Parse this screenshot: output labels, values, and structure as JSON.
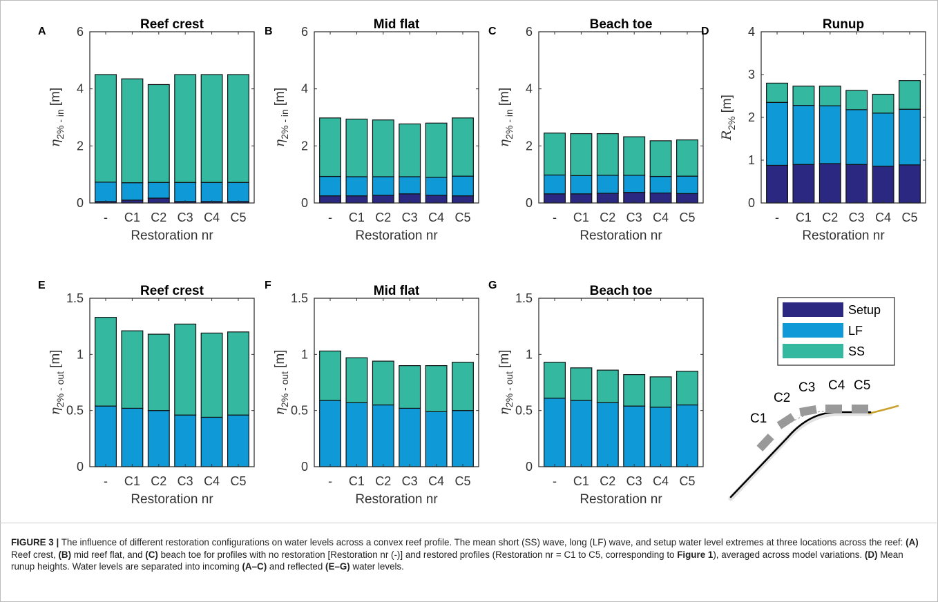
{
  "colors": {
    "setup": "#2b2882",
    "lf": "#0f9ad7",
    "ss": "#34b8a0",
    "reef_profile": "#000000",
    "beach": "#c8a02a",
    "restoration_block": "#999999"
  },
  "legend": [
    "Setup",
    "LF",
    "SS"
  ],
  "schematic": {
    "labels": [
      "C1",
      "C2",
      "C3",
      "C4",
      "C5"
    ]
  },
  "chart_data": [
    {
      "panel": "A",
      "title": "Reef crest",
      "type": "bar",
      "stacked": true,
      "categories": [
        "-",
        "C1",
        "C2",
        "C3",
        "C4",
        "C5"
      ],
      "xlabel": "Restoration nr",
      "ylabel_symbol": "η",
      "ylabel_sub": "2% - in",
      "ylabel_unit": "[m]",
      "ylim": [
        0,
        6
      ],
      "yticks": [
        "0",
        "2",
        "4",
        "6"
      ],
      "series": [
        {
          "name": "Setup",
          "values": [
            0.05,
            0.1,
            0.17,
            0.05,
            0.05,
            0.05
          ]
        },
        {
          "name": "LF",
          "values": [
            0.68,
            0.61,
            0.55,
            0.67,
            0.67,
            0.67
          ]
        },
        {
          "name": "SS",
          "values": [
            3.77,
            3.64,
            3.43,
            3.78,
            3.78,
            3.78
          ]
        }
      ]
    },
    {
      "panel": "B",
      "title": "Mid flat",
      "type": "bar",
      "stacked": true,
      "categories": [
        "-",
        "C1",
        "C2",
        "C3",
        "C4",
        "C5"
      ],
      "xlabel": "Restoration nr",
      "ylabel_symbol": "η",
      "ylabel_sub": "2% - in",
      "ylabel_unit": "[m]",
      "ylim": [
        0,
        6
      ],
      "yticks": [
        "0",
        "2",
        "4",
        "6"
      ],
      "series": [
        {
          "name": "Setup",
          "values": [
            0.25,
            0.25,
            0.27,
            0.32,
            0.27,
            0.25
          ]
        },
        {
          "name": "LF",
          "values": [
            0.68,
            0.67,
            0.65,
            0.6,
            0.63,
            0.69
          ]
        },
        {
          "name": "SS",
          "values": [
            2.05,
            2.02,
            1.99,
            1.85,
            1.9,
            2.04
          ]
        }
      ]
    },
    {
      "panel": "C",
      "title": "Beach toe",
      "type": "bar",
      "stacked": true,
      "categories": [
        "-",
        "C1",
        "C2",
        "C3",
        "C4",
        "C5"
      ],
      "xlabel": "Restoration nr",
      "ylabel_symbol": "η",
      "ylabel_sub": "2% - in",
      "ylabel_unit": "[m]",
      "ylim": [
        0,
        6
      ],
      "yticks": [
        "0",
        "2",
        "4",
        "6"
      ],
      "series": [
        {
          "name": "Setup",
          "values": [
            0.32,
            0.32,
            0.34,
            0.37,
            0.35,
            0.33
          ]
        },
        {
          "name": "LF",
          "values": [
            0.66,
            0.64,
            0.63,
            0.6,
            0.58,
            0.61
          ]
        },
        {
          "name": "SS",
          "values": [
            1.47,
            1.47,
            1.46,
            1.35,
            1.25,
            1.27
          ]
        }
      ]
    },
    {
      "panel": "D",
      "title": "Runup",
      "type": "bar",
      "stacked": true,
      "categories": [
        "-",
        "C1",
        "C2",
        "C3",
        "C4",
        "C5"
      ],
      "xlabel": "Restoration nr",
      "ylabel_symbol": "R",
      "ylabel_sub": "2%",
      "ylabel_unit": "[m]",
      "ylim": [
        0,
        4
      ],
      "yticks": [
        "0",
        "1",
        "2",
        "3",
        "4"
      ],
      "series": [
        {
          "name": "Setup",
          "values": [
            0.88,
            0.9,
            0.92,
            0.9,
            0.86,
            0.89
          ]
        },
        {
          "name": "LF",
          "values": [
            1.47,
            1.38,
            1.35,
            1.28,
            1.24,
            1.3
          ]
        },
        {
          "name": "SS",
          "values": [
            0.45,
            0.45,
            0.46,
            0.45,
            0.44,
            0.67
          ]
        }
      ]
    },
    {
      "panel": "E",
      "title": "Reef crest",
      "type": "bar",
      "stacked": true,
      "categories": [
        "-",
        "C1",
        "C2",
        "C3",
        "C4",
        "C5"
      ],
      "xlabel": "Restoration nr",
      "ylabel_symbol": "η",
      "ylabel_sub": "2% - out",
      "ylabel_unit": "[m]",
      "ylim": [
        0,
        1.5
      ],
      "yticks": [
        "0",
        "0.5",
        "1",
        "1.5"
      ],
      "series": [
        {
          "name": "LF",
          "values": [
            0.54,
            0.52,
            0.5,
            0.46,
            0.44,
            0.46
          ]
        },
        {
          "name": "SS",
          "values": [
            0.79,
            0.69,
            0.68,
            0.81,
            0.75,
            0.74
          ]
        }
      ]
    },
    {
      "panel": "F",
      "title": "Mid flat",
      "type": "bar",
      "stacked": true,
      "categories": [
        "-",
        "C1",
        "C2",
        "C3",
        "C4",
        "C5"
      ],
      "xlabel": "Restoration nr",
      "ylabel_symbol": "η",
      "ylabel_sub": "2% - out",
      "ylabel_unit": "[m]",
      "ylim": [
        0,
        1.5
      ],
      "yticks": [
        "0",
        "0.5",
        "1",
        "1.5"
      ],
      "series": [
        {
          "name": "LF",
          "values": [
            0.59,
            0.57,
            0.55,
            0.52,
            0.49,
            0.5
          ]
        },
        {
          "name": "SS",
          "values": [
            0.44,
            0.4,
            0.39,
            0.38,
            0.41,
            0.43
          ]
        }
      ]
    },
    {
      "panel": "G",
      "title": "Beach toe",
      "type": "bar",
      "stacked": true,
      "categories": [
        "-",
        "C1",
        "C2",
        "C3",
        "C4",
        "C5"
      ],
      "xlabel": "Restoration nr",
      "ylabel_symbol": "η",
      "ylabel_sub": "2% - out",
      "ylabel_unit": "[m]",
      "ylim": [
        0,
        1.5
      ],
      "yticks": [
        "0",
        "0.5",
        "1",
        "1.5"
      ],
      "series": [
        {
          "name": "LF",
          "values": [
            0.61,
            0.59,
            0.57,
            0.54,
            0.53,
            0.55
          ]
        },
        {
          "name": "SS",
          "values": [
            0.32,
            0.29,
            0.29,
            0.28,
            0.27,
            0.3
          ]
        }
      ]
    }
  ],
  "caption": {
    "label": "FIGURE 3 |",
    "text1": " The influence of different restoration configurations on water levels across a convex reef profile. The mean short (SS) wave, long (LF) wave, and setup water level extremes at three locations across the reef: ",
    "b1": "(A)",
    "text2": " Reef crest, ",
    "b2": "(B)",
    "text3": " mid reef flat, and ",
    "b3": "(C)",
    "text4": " beach toe for profiles with no restoration [Restoration nr (-)] and restored profiles (Restoration nr = C1 to C5, corresponding to ",
    "b4": "Figure 1",
    "text5": "), averaged across model variations. ",
    "b5": "(D)",
    "text6": " Mean runup heights. Water levels are separated into incoming ",
    "b6": "(A–C)",
    "text7": " and reflected ",
    "b7": "(E–G)",
    "text8": " water levels."
  }
}
